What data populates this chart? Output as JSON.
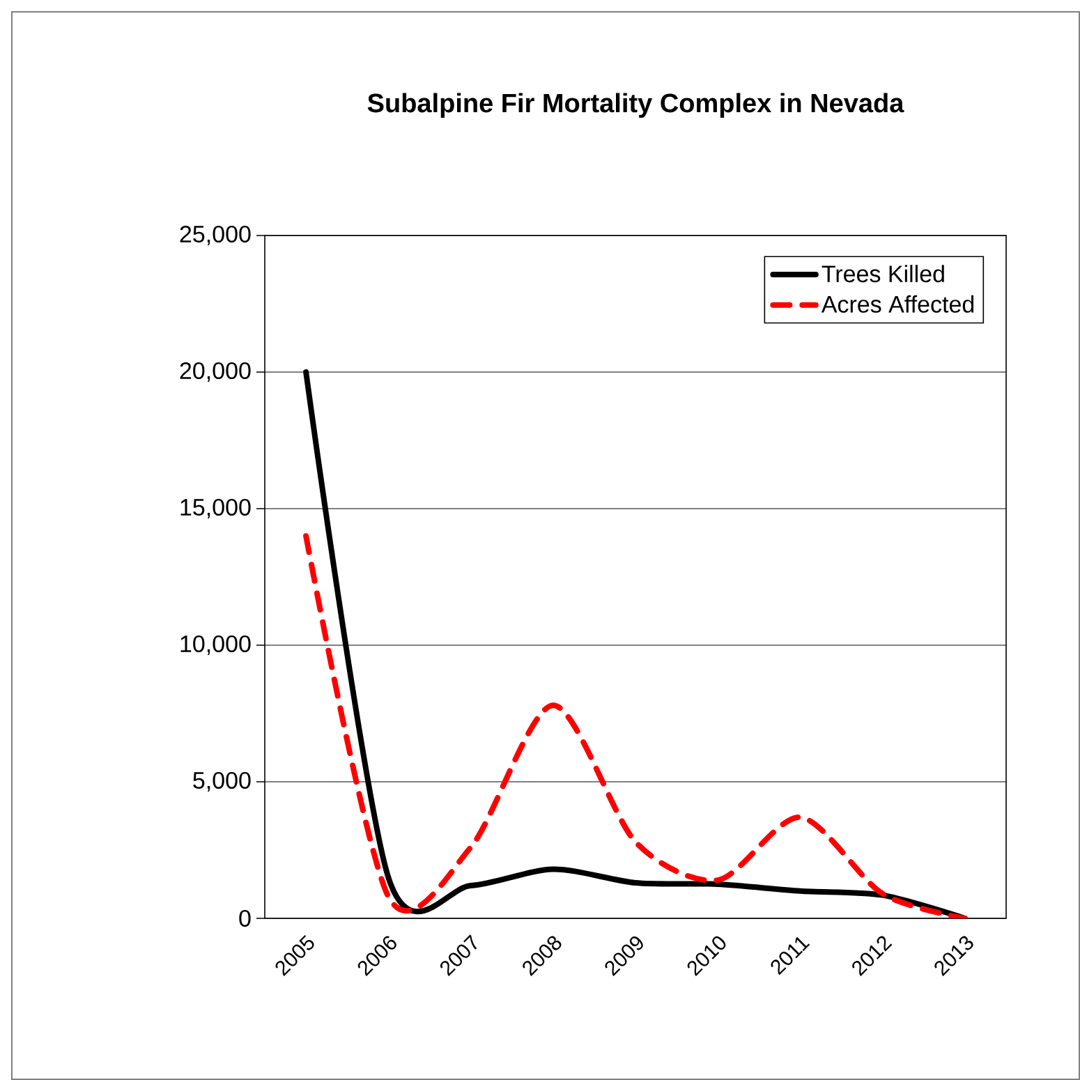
{
  "chart_data": {
    "type": "line",
    "title": "Subalpine Fir Mortality Complex in Nevada",
    "categories": [
      "2005",
      "2006",
      "2007",
      "2008",
      "2009",
      "2010",
      "2011",
      "2012",
      "2013"
    ],
    "series": [
      {
        "name": "Trees Killed",
        "color": "#000000",
        "line_style": "solid",
        "values": [
          20000,
          1500,
          1200,
          1800,
          1300,
          1250,
          1000,
          850,
          0
        ]
      },
      {
        "name": "Acres Affected",
        "color": "#ff0000",
        "line_style": "dashed",
        "values": [
          14000,
          800,
          2600,
          7800,
          2800,
          1400,
          3700,
          900,
          0
        ]
      }
    ],
    "ylim": [
      0,
      25000
    ],
    "yticks": [
      {
        "value": 0,
        "label": "0"
      },
      {
        "value": 5000,
        "label": "5,000"
      },
      {
        "value": 10000,
        "label": "10,000"
      },
      {
        "value": 15000,
        "label": "15,000"
      },
      {
        "value": 20000,
        "label": "20,000"
      },
      {
        "value": 25000,
        "label": "25,000"
      }
    ],
    "grid": "y",
    "legend": "top right"
  }
}
